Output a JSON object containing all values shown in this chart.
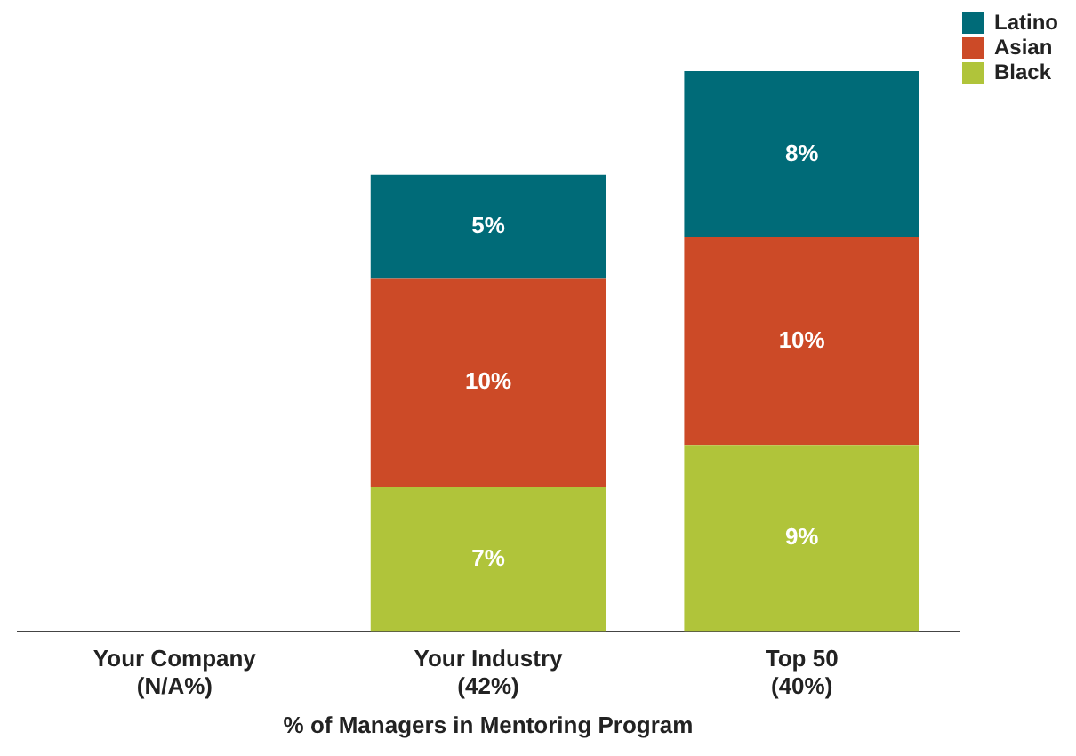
{
  "chart_data": {
    "type": "bar",
    "stacked": true,
    "xlabel": "% of Managers in Mentoring Program",
    "categories": [
      "Your Company\n(N/A%)",
      "Your Industry\n(42%)",
      "Top 50\n(40%)"
    ],
    "series": [
      {
        "name": "Black",
        "color": "#b0c43a",
        "values": [
          null,
          7,
          9
        ],
        "value_labels": [
          null,
          "7%",
          "9%"
        ]
      },
      {
        "name": "Asian",
        "color": "#cc4a27",
        "values": [
          null,
          10,
          10
        ],
        "value_labels": [
          null,
          "10%",
          "10%"
        ]
      },
      {
        "name": "Latino",
        "color": "#006b78",
        "values": [
          null,
          5,
          8
        ],
        "value_labels": [
          null,
          "5%",
          "8%"
        ]
      }
    ],
    "legend": "top right",
    "grid": false
  }
}
